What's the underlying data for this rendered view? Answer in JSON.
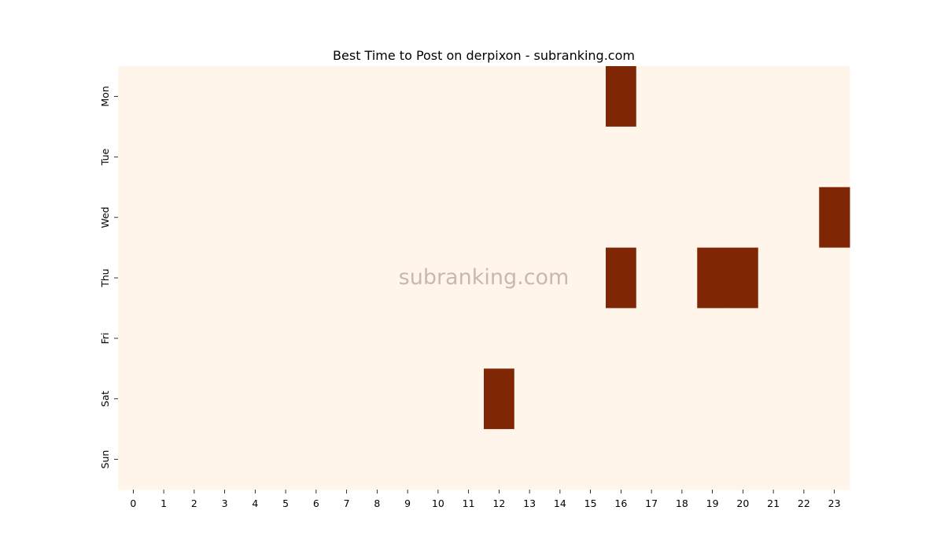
{
  "chart_data": {
    "type": "heatmap",
    "title": "Best Time to Post on derpixon - subranking.com",
    "xlabel": "",
    "ylabel": "",
    "x_categories": [
      "0",
      "1",
      "2",
      "3",
      "4",
      "5",
      "6",
      "7",
      "8",
      "9",
      "10",
      "11",
      "12",
      "13",
      "14",
      "15",
      "16",
      "17",
      "18",
      "19",
      "20",
      "21",
      "22",
      "23"
    ],
    "y_categories": [
      "Mon",
      "Tue",
      "Wed",
      "Thu",
      "Fri",
      "Sat",
      "Sun"
    ],
    "values": [
      [
        0,
        0,
        0,
        0,
        0,
        0,
        0,
        0,
        0,
        0,
        0,
        0,
        0,
        0,
        0,
        0,
        1,
        0,
        0,
        0,
        0,
        0,
        0,
        0
      ],
      [
        0,
        0,
        0,
        0,
        0,
        0,
        0,
        0,
        0,
        0,
        0,
        0,
        0,
        0,
        0,
        0,
        0,
        0,
        0,
        0,
        0,
        0,
        0,
        0
      ],
      [
        0,
        0,
        0,
        0,
        0,
        0,
        0,
        0,
        0,
        0,
        0,
        0,
        0,
        0,
        0,
        0,
        0,
        0,
        0,
        0,
        0,
        0,
        0,
        1
      ],
      [
        0,
        0,
        0,
        0,
        0,
        0,
        0,
        0,
        0,
        0,
        0,
        0,
        0,
        0,
        0,
        0,
        1,
        0,
        0,
        1,
        1,
        0,
        0,
        0
      ],
      [
        0,
        0,
        0,
        0,
        0,
        0,
        0,
        0,
        0,
        0,
        0,
        0,
        0,
        0,
        0,
        0,
        0,
        0,
        0,
        0,
        0,
        0,
        0,
        0
      ],
      [
        0,
        0,
        0,
        0,
        0,
        0,
        0,
        0,
        0,
        0,
        0,
        0,
        1,
        0,
        0,
        0,
        0,
        0,
        0,
        0,
        0,
        0,
        0,
        0
      ],
      [
        0,
        0,
        0,
        0,
        0,
        0,
        0,
        0,
        0,
        0,
        0,
        0,
        0,
        0,
        0,
        0,
        0,
        0,
        0,
        0,
        0,
        0,
        0,
        0
      ]
    ],
    "colormap": {
      "low": "#fff5eb",
      "high": "#7f2704"
    },
    "grid": false,
    "legend": "none"
  },
  "watermark": "subranking.com"
}
